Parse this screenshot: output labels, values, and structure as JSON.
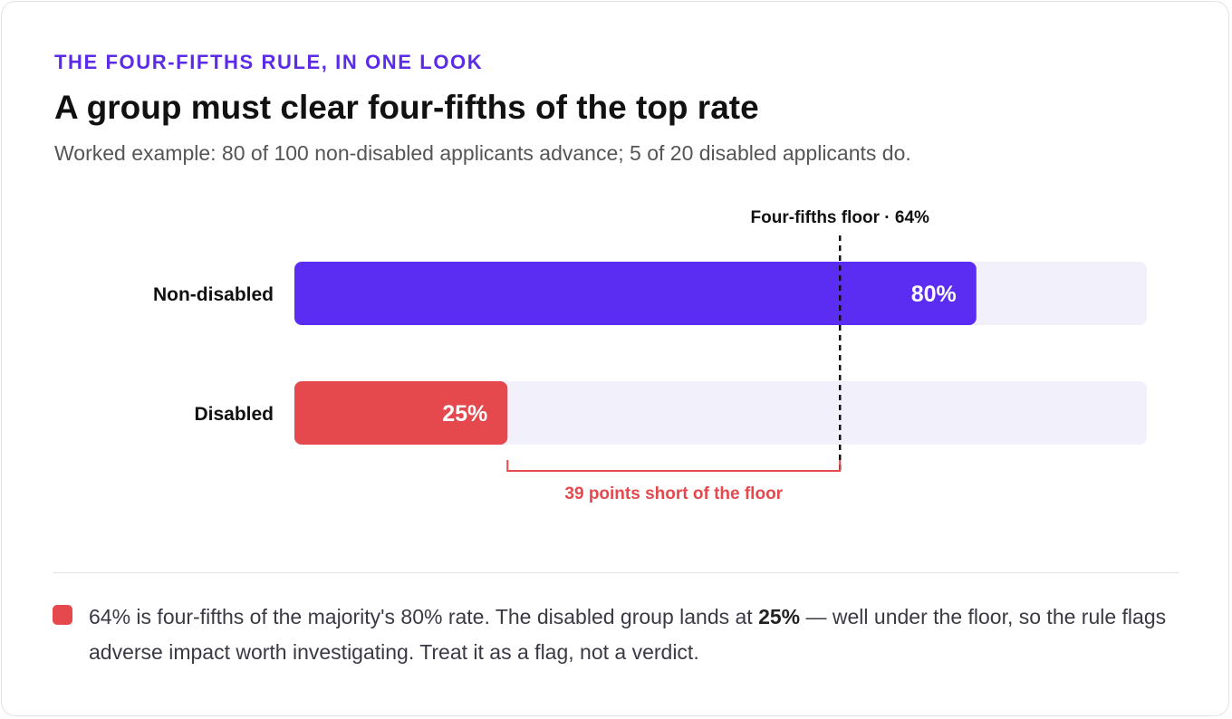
{
  "header": {
    "eyebrow": "THE FOUR-FIFTHS RULE, IN ONE LOOK",
    "title": "A group must clear four-fifths of the top rate",
    "subtitle": "Worked example: 80 of 100 non-disabled applicants advance; 5 of 20 disabled applicants do."
  },
  "chart_data": {
    "type": "bar",
    "orientation": "horizontal",
    "categories": [
      "Non-disabled",
      "Disabled"
    ],
    "values": [
      80,
      25
    ],
    "value_labels": [
      "80%",
      "25%"
    ],
    "xlim": [
      0,
      100
    ],
    "threshold": {
      "value": 64,
      "label": "Four-fifths floor · 64%"
    },
    "gap_annotation": {
      "from": 25,
      "to": 64,
      "label": "39 points short of the floor"
    },
    "colors": [
      "#5b2cf2",
      "#e5484d"
    ],
    "track_color": "#f2f0fa",
    "grid": false
  },
  "note": {
    "text_before": "64% is four-fifths of the majority's 80% rate. The disabled group lands at ",
    "highlight": "25%",
    "text_after": " — well under the floor, so the rule flags adverse impact worth investigating. Treat it as a flag, not a verdict."
  },
  "colors": {
    "accent": "#5b2be8",
    "danger": "#e5484d"
  }
}
